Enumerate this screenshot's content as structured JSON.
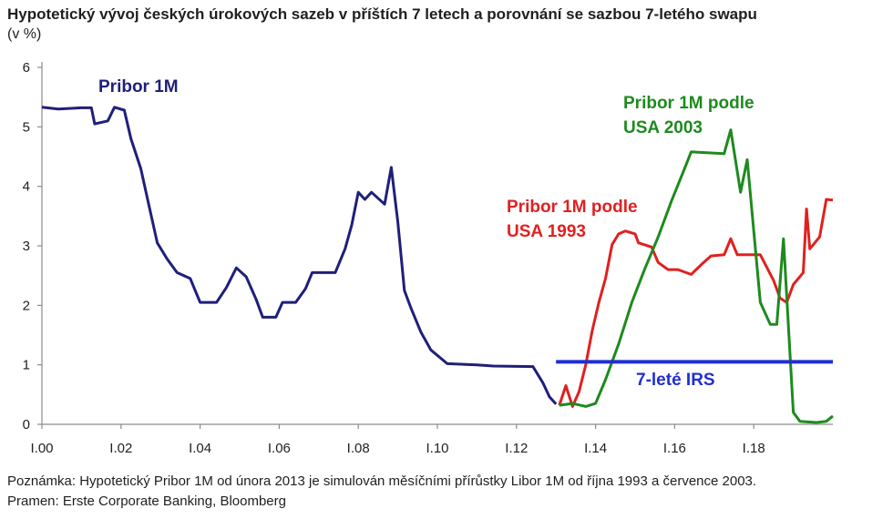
{
  "header": {
    "title": "Hypotetický vývoj českých úrokových sazeb v příštích 7 letech a porovnání se sazbou 7-letého swapu",
    "unit": "(v %)"
  },
  "notes": {
    "note": "Poznámka: Hypotetický Pribor 1M od února 2013 je simulován měsíčními přírůstky Libor 1M od října 1993 a července 2003.",
    "source": "Pramen: Erste Corporate Banking, Bloomberg"
  },
  "chart_data": {
    "type": "line",
    "x_ticks": [
      "I.00",
      "I.02",
      "I.04",
      "I.06",
      "I.08",
      "I.10",
      "I.12",
      "I.14",
      "I.16",
      "I.18"
    ],
    "y_ticks": [
      "0",
      "1",
      "2",
      "3",
      "4",
      "5",
      "6"
    ],
    "ylim": [
      0,
      6
    ],
    "xlim": [
      "2000-01",
      "2020-01"
    ],
    "grid": false,
    "series": [
      {
        "name": "Pribor 1M",
        "color": "#1f1f7a",
        "points": [
          [
            "2000-01",
            5.33
          ],
          [
            "2000-06",
            5.3
          ],
          [
            "2001-01",
            5.32
          ],
          [
            "2001-04",
            5.32
          ],
          [
            "2001-05",
            5.05
          ],
          [
            "2001-09",
            5.1
          ],
          [
            "2001-11",
            5.33
          ],
          [
            "2002-02",
            5.28
          ],
          [
            "2002-04",
            4.8
          ],
          [
            "2002-07",
            4.3
          ],
          [
            "2002-09",
            3.8
          ],
          [
            "2002-12",
            3.05
          ],
          [
            "2003-03",
            2.78
          ],
          [
            "2003-06",
            2.55
          ],
          [
            "2003-10",
            2.45
          ],
          [
            "2004-01",
            2.05
          ],
          [
            "2004-06",
            2.05
          ],
          [
            "2004-09",
            2.3
          ],
          [
            "2004-12",
            2.63
          ],
          [
            "2005-03",
            2.48
          ],
          [
            "2005-06",
            2.1
          ],
          [
            "2005-08",
            1.8
          ],
          [
            "2005-12",
            1.8
          ],
          [
            "2006-02",
            2.05
          ],
          [
            "2006-06",
            2.05
          ],
          [
            "2006-09",
            2.28
          ],
          [
            "2006-11",
            2.55
          ],
          [
            "2007-06",
            2.55
          ],
          [
            "2007-09",
            2.95
          ],
          [
            "2007-11",
            3.35
          ],
          [
            "2008-01",
            3.9
          ],
          [
            "2008-03",
            3.78
          ],
          [
            "2008-05",
            3.9
          ],
          [
            "2008-09",
            3.7
          ],
          [
            "2008-11",
            4.32
          ],
          [
            "2009-01",
            3.4
          ],
          [
            "2009-03",
            2.25
          ],
          [
            "2009-05",
            1.95
          ],
          [
            "2009-08",
            1.55
          ],
          [
            "2009-11",
            1.25
          ],
          [
            "2010-04",
            1.02
          ],
          [
            "2011-01",
            1.0
          ],
          [
            "2011-06",
            0.98
          ],
          [
            "2012-06",
            0.97
          ],
          [
            "2012-09",
            0.7
          ],
          [
            "2012-11",
            0.46
          ],
          [
            "2013-01",
            0.34
          ]
        ]
      },
      {
        "name": "Pribor 1M podle USA 1993",
        "color": "#e02020",
        "points": [
          [
            "2013-02",
            0.32
          ],
          [
            "2013-04",
            0.65
          ],
          [
            "2013-06",
            0.3
          ],
          [
            "2013-08",
            0.55
          ],
          [
            "2013-10",
            1.0
          ],
          [
            "2013-12",
            1.58
          ],
          [
            "2014-02",
            2.05
          ],
          [
            "2014-04",
            2.45
          ],
          [
            "2014-06",
            3.02
          ],
          [
            "2014-08",
            3.2
          ],
          [
            "2014-10",
            3.25
          ],
          [
            "2015-01",
            3.2
          ],
          [
            "2015-02",
            3.05
          ],
          [
            "2015-06",
            2.98
          ],
          [
            "2015-08",
            2.72
          ],
          [
            "2015-11",
            2.6
          ],
          [
            "2016-02",
            2.6
          ],
          [
            "2016-06",
            2.52
          ],
          [
            "2016-09",
            2.68
          ],
          [
            "2016-12",
            2.83
          ],
          [
            "2017-04",
            2.85
          ],
          [
            "2017-06",
            3.12
          ],
          [
            "2017-08",
            2.85
          ],
          [
            "2018-03",
            2.85
          ],
          [
            "2018-07",
            2.42
          ],
          [
            "2018-09",
            2.12
          ],
          [
            "2018-11",
            2.05
          ],
          [
            "2019-01",
            2.35
          ],
          [
            "2019-04",
            2.55
          ],
          [
            "2019-05",
            3.62
          ],
          [
            "2019-06",
            2.95
          ],
          [
            "2019-09",
            3.15
          ],
          [
            "2019-11",
            3.78
          ],
          [
            "2020-01",
            3.77
          ]
        ]
      },
      {
        "name": "Pribor 1M podle USA 2003",
        "color": "#1e8a1e",
        "points": [
          [
            "2013-02",
            0.32
          ],
          [
            "2013-06",
            0.35
          ],
          [
            "2013-10",
            0.3
          ],
          [
            "2014-01",
            0.35
          ],
          [
            "2014-04",
            0.75
          ],
          [
            "2014-08",
            1.35
          ],
          [
            "2014-12",
            2.05
          ],
          [
            "2015-04",
            2.62
          ],
          [
            "2015-08",
            3.15
          ],
          [
            "2015-12",
            3.75
          ],
          [
            "2016-04",
            4.3
          ],
          [
            "2016-06",
            4.58
          ],
          [
            "2017-04",
            4.55
          ],
          [
            "2017-06",
            4.95
          ],
          [
            "2017-09",
            3.9
          ],
          [
            "2017-11",
            4.45
          ],
          [
            "2018-03",
            2.05
          ],
          [
            "2018-06",
            1.68
          ],
          [
            "2018-08",
            1.68
          ],
          [
            "2018-10",
            3.12
          ],
          [
            "2019-01",
            0.2
          ],
          [
            "2019-03",
            0.05
          ],
          [
            "2019-08",
            0.03
          ],
          [
            "2019-11",
            0.05
          ],
          [
            "2020-01",
            0.14
          ]
        ]
      },
      {
        "name": "7-leté IRS",
        "color": "#1f2fd0",
        "points": [
          [
            "2013-01",
            1.05
          ],
          [
            "2020-01",
            1.05
          ]
        ]
      }
    ]
  }
}
